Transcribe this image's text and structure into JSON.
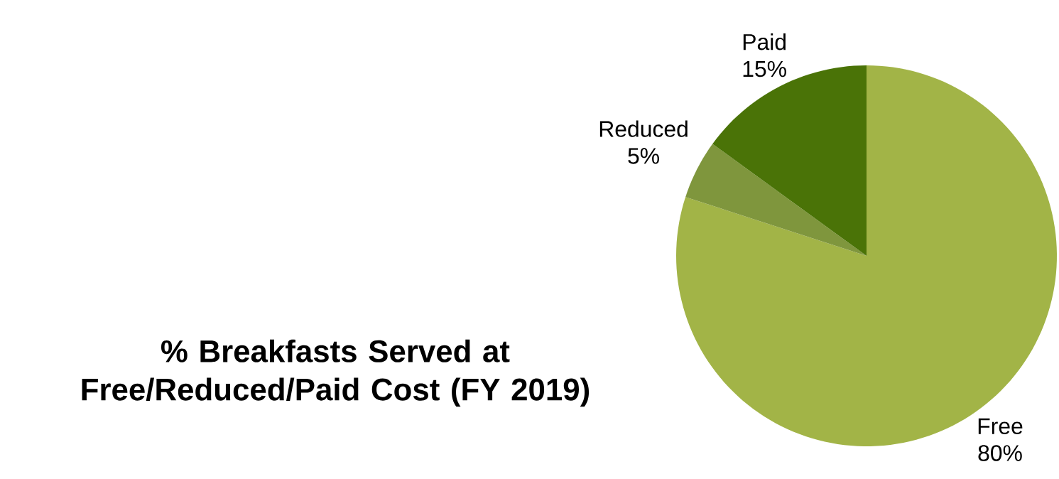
{
  "chart_data": {
    "type": "pie",
    "title": "% Breakfasts Served at Free/Reduced/Paid Cost (FY 2019)",
    "categories": [
      "Free",
      "Reduced",
      "Paid"
    ],
    "values": [
      80,
      5,
      15
    ],
    "value_labels": [
      "80%",
      "5%",
      "15%"
    ],
    "colors": [
      "#a2b447",
      "#7f963d",
      "#4a7307"
    ]
  }
}
